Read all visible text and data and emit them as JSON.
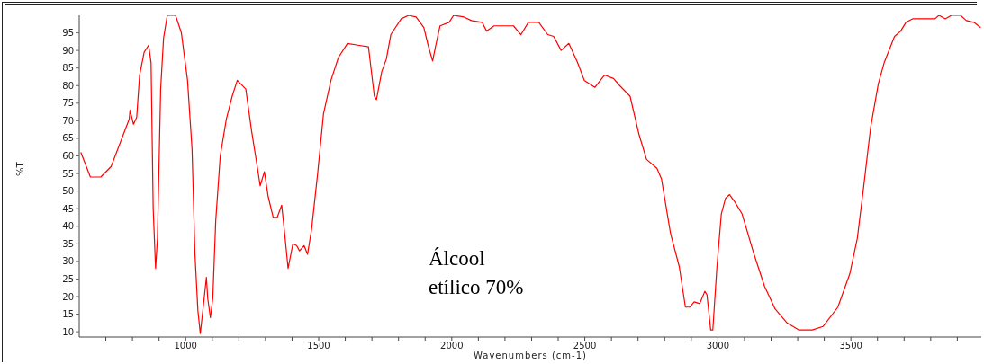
{
  "chart_data": {
    "type": "line",
    "xlabel": "Wavenumbers (cm-1)",
    "ylabel": "%T",
    "annotations": [
      "Álcool\netílico 70%"
    ],
    "xlim": [
      600,
      3990
    ],
    "ylim": [
      8.5,
      100
    ],
    "xticks": [
      {
        "value": 700,
        "label": null
      },
      {
        "value": 800,
        "label": null
      },
      {
        "value": 900,
        "label": null
      },
      1000,
      {
        "value": 1100,
        "label": null
      },
      {
        "value": 1200,
        "label": null
      },
      {
        "value": 1300,
        "label": null
      },
      {
        "value": 1400,
        "label": null
      },
      1500,
      {
        "value": 1600,
        "label": null
      },
      {
        "value": 1700,
        "label": null
      },
      {
        "value": 1800,
        "label": null
      },
      {
        "value": 1900,
        "label": null
      },
      2000,
      {
        "value": 2100,
        "label": null
      },
      {
        "value": 2200,
        "label": null
      },
      {
        "value": 2300,
        "label": null
      },
      {
        "value": 2400,
        "label": null
      },
      2500,
      {
        "value": 2600,
        "label": null
      },
      {
        "value": 2700,
        "label": null
      },
      {
        "value": 2800,
        "label": null
      },
      {
        "value": 2900,
        "label": null
      },
      3000,
      {
        "value": 3100,
        "label": null
      },
      {
        "value": 3200,
        "label": null
      },
      {
        "value": 3300,
        "label": null
      },
      {
        "value": 3400,
        "label": null
      },
      3500,
      {
        "value": 3600,
        "label": null
      },
      {
        "value": 3700,
        "label": null
      },
      {
        "value": 3800,
        "label": null
      },
      {
        "value": 3900,
        "label": null
      }
    ],
    "yticks": [
      10,
      15,
      20,
      25,
      30,
      35,
      40,
      45,
      50,
      55,
      60,
      65,
      70,
      75,
      80,
      85,
      90,
      95
    ],
    "color": "#ff0000",
    "x": [
      606,
      642,
      681,
      720,
      788,
      791,
      804,
      816,
      827,
      844,
      861,
      870,
      878,
      887,
      894,
      906,
      917,
      931,
      962,
      984,
      1007,
      1024,
      1035,
      1046,
      1055,
      1066,
      1078,
      1083,
      1093,
      1102,
      1113,
      1130,
      1153,
      1175,
      1194,
      1226,
      1248,
      1269,
      1280,
      1296,
      1310,
      1329,
      1344,
      1361,
      1372,
      1385,
      1403,
      1417,
      1428,
      1445,
      1458,
      1473,
      1496,
      1518,
      1546,
      1574,
      1608,
      1647,
      1687,
      1709,
      1717,
      1737,
      1754,
      1771,
      1810,
      1838,
      1866,
      1895,
      1911,
      1928,
      1940,
      1956,
      1990,
      2007,
      2046,
      2074,
      2114,
      2131,
      2159,
      2232,
      2260,
      2288,
      2327,
      2361,
      2383,
      2411,
      2440,
      2473,
      2498,
      2538,
      2574,
      2608,
      2631,
      2670,
      2704,
      2732,
      2771,
      2788,
      2822,
      2855,
      2878,
      2895,
      2911,
      2932,
      2951,
      2959,
      2973,
      2981,
      2996,
      3013,
      3029,
      3044,
      3063,
      3091,
      3136,
      3175,
      3215,
      3260,
      3305,
      3355,
      3395,
      3451,
      3496,
      3524,
      3546,
      3574,
      3603,
      3625,
      3664,
      3687,
      3707,
      3732,
      3816,
      3831,
      3855,
      3878,
      3912,
      3934,
      3962,
      3988
    ],
    "values": [
      61,
      54,
      54,
      57,
      70.5,
      73,
      69,
      71,
      83,
      89.5,
      91.5,
      86.5,
      45,
      28,
      36.5,
      79,
      93.5,
      100,
      100,
      95,
      81.5,
      62,
      32,
      16,
      9.5,
      17,
      25.5,
      19.5,
      14,
      19.5,
      41.5,
      60,
      70.5,
      77,
      81.5,
      79,
      67,
      57,
      51.5,
      55.5,
      48.5,
      42.5,
      42.5,
      46,
      38,
      28,
      35,
      34.5,
      33,
      34.5,
      32,
      39,
      55,
      72,
      81.5,
      88,
      92,
      91.5,
      91,
      77,
      76,
      84,
      87.5,
      94.5,
      99,
      100,
      99.5,
      96.5,
      91.5,
      87,
      91.5,
      97,
      98,
      100,
      99.5,
      98.5,
      98,
      95.5,
      97,
      97,
      94.5,
      98,
      98,
      94.5,
      94,
      90,
      92,
      86.5,
      81.5,
      79.5,
      83,
      82,
      80,
      77,
      66,
      59,
      56.5,
      53.5,
      38,
      28.5,
      17,
      17,
      18.5,
      18,
      21.5,
      20.5,
      10.5,
      10.5,
      28,
      43.5,
      48,
      49,
      47,
      43.5,
      32,
      23,
      16.5,
      12.5,
      10.5,
      10.5,
      11.5,
      17,
      26.5,
      36.5,
      50,
      68,
      80.5,
      86.5,
      94,
      95.5,
      98,
      99,
      99,
      100,
      99,
      100,
      100,
      98.5,
      98,
      96.5
    ]
  }
}
